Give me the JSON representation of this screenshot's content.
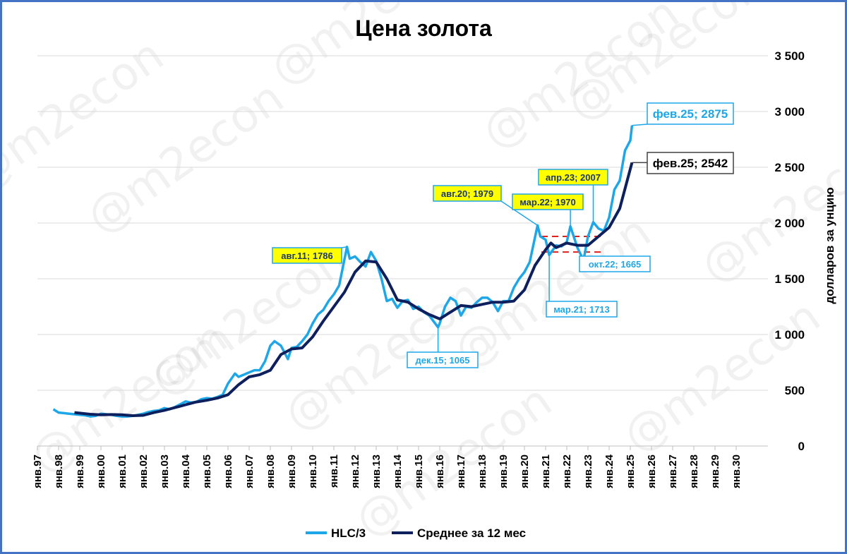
{
  "watermark": "@m2econ",
  "chart_data": {
    "type": "line",
    "title": "Цена золота",
    "ylabel": "долларов за унцию",
    "ylim": [
      0,
      3500
    ],
    "yticks": [
      0,
      500,
      1000,
      1500,
      2000,
      2500,
      3000,
      3500
    ],
    "ytick_labels": [
      "0",
      "500",
      "1 000",
      "1 500",
      "2 000",
      "2 500",
      "3 000",
      "3 500"
    ],
    "xlim": [
      1997.0,
      2031.5
    ],
    "x_tick_labels": [
      "янв.97",
      "янв.98",
      "янв.99",
      "янв.00",
      "янв.01",
      "янв.02",
      "янв.03",
      "янв.04",
      "янв.05",
      "янв.06",
      "янв.07",
      "янв.08",
      "янв.09",
      "янв.10",
      "янв.11",
      "янв.12",
      "янв.13",
      "янв.14",
      "янв.15",
      "янв.16",
      "янв.17",
      "янв.18",
      "янв.19",
      "янв.20",
      "янв.21",
      "янв.22",
      "янв.23",
      "янв.24",
      "янв.25",
      "янв.26",
      "янв.27",
      "янв.28",
      "янв.29",
      "янв.30"
    ],
    "grid": true,
    "legend_position": "bottom",
    "series": [
      {
        "name": "HLC/3",
        "color": "#1ea7e8",
        "x": [
          1997.75,
          1998.0,
          1998.25,
          1998.5,
          1998.75,
          1999.0,
          1999.25,
          1999.5,
          1999.75,
          2000.0,
          2000.25,
          2000.5,
          2000.75,
          2001.0,
          2001.25,
          2001.5,
          2001.75,
          2002.0,
          2002.25,
          2002.5,
          2002.75,
          2003.0,
          2003.25,
          2003.5,
          2003.75,
          2004.0,
          2004.25,
          2004.5,
          2004.75,
          2005.0,
          2005.25,
          2005.5,
          2005.75,
          2006.0,
          2006.33,
          2006.5,
          2006.75,
          2007.0,
          2007.25,
          2007.5,
          2007.75,
          2008.0,
          2008.2,
          2008.5,
          2008.83,
          2009.0,
          2009.25,
          2009.5,
          2009.75,
          2010.0,
          2010.25,
          2010.5,
          2010.75,
          2011.0,
          2011.25,
          2011.62,
          2011.75,
          2012.0,
          2012.25,
          2012.5,
          2012.75,
          2013.0,
          2013.25,
          2013.5,
          2013.75,
          2014.0,
          2014.25,
          2014.5,
          2014.75,
          2015.0,
          2015.25,
          2015.5,
          2015.92,
          2016.0,
          2016.25,
          2016.5,
          2016.75,
          2017.0,
          2017.25,
          2017.5,
          2017.75,
          2018.0,
          2018.25,
          2018.5,
          2018.75,
          2019.0,
          2019.25,
          2019.5,
          2019.75,
          2020.0,
          2020.25,
          2020.62,
          2020.75,
          2021.0,
          2021.17,
          2021.5,
          2021.75,
          2022.0,
          2022.17,
          2022.5,
          2022.79,
          2023.0,
          2023.25,
          2023.5,
          2023.75,
          2024.0,
          2024.25,
          2024.5,
          2024.75,
          2025.0,
          2025.08
        ],
        "values": [
          330,
          300,
          295,
          290,
          285,
          280,
          275,
          265,
          270,
          290,
          285,
          280,
          270,
          265,
          265,
          270,
          280,
          290,
          305,
          315,
          320,
          340,
          330,
          350,
          375,
          400,
          390,
          395,
          420,
          430,
          425,
          440,
          460,
          560,
          650,
          620,
          640,
          660,
          680,
          680,
          760,
          900,
          940,
          900,
          780,
          880,
          890,
          940,
          1000,
          1100,
          1180,
          1220,
          1300,
          1360,
          1440,
          1786,
          1680,
          1700,
          1650,
          1610,
          1740,
          1660,
          1500,
          1300,
          1320,
          1240,
          1300,
          1310,
          1230,
          1250,
          1200,
          1170,
          1065,
          1100,
          1250,
          1330,
          1300,
          1170,
          1250,
          1240,
          1290,
          1330,
          1330,
          1290,
          1210,
          1300,
          1300,
          1420,
          1500,
          1560,
          1650,
          1979,
          1880,
          1850,
          1713,
          1800,
          1790,
          1830,
          1970,
          1780,
          1665,
          1880,
          2007,
          1950,
          1930,
          2050,
          2300,
          2380,
          2650,
          2740,
          2875
        ]
      },
      {
        "name": "Среднее за 12 мес",
        "color": "#0d1f5c",
        "x": [
          1998.75,
          1999.0,
          1999.5,
          2000.0,
          2000.5,
          2001.0,
          2001.5,
          2002.0,
          2002.5,
          2003.0,
          2003.5,
          2004.0,
          2004.5,
          2005.0,
          2005.5,
          2006.0,
          2006.5,
          2007.0,
          2007.5,
          2008.0,
          2008.5,
          2009.0,
          2009.5,
          2010.0,
          2010.5,
          2011.0,
          2011.5,
          2012.0,
          2012.5,
          2013.0,
          2013.5,
          2014.0,
          2014.5,
          2015.0,
          2015.5,
          2016.0,
          2016.5,
          2017.0,
          2017.5,
          2018.0,
          2018.5,
          2019.0,
          2019.5,
          2020.0,
          2020.5,
          2021.0,
          2021.25,
          2021.5,
          2022.0,
          2022.5,
          2023.0,
          2023.5,
          2024.0,
          2024.5,
          2025.08
        ],
        "values": [
          300,
          295,
          285,
          280,
          282,
          280,
          272,
          275,
          300,
          320,
          345,
          370,
          395,
          410,
          430,
          460,
          550,
          620,
          640,
          680,
          820,
          870,
          880,
          980,
          1120,
          1250,
          1380,
          1560,
          1660,
          1650,
          1500,
          1310,
          1290,
          1230,
          1180,
          1140,
          1200,
          1260,
          1250,
          1270,
          1290,
          1290,
          1300,
          1400,
          1620,
          1760,
          1820,
          1780,
          1820,
          1800,
          1800,
          1880,
          1960,
          2130,
          2542
        ]
      }
    ],
    "annotations": [
      {
        "text": "авг.11; 1786",
        "style": "yellow"
      },
      {
        "text": "дек.15; 1065",
        "style": "blue"
      },
      {
        "text": "авг.20; 1979",
        "style": "yellow"
      },
      {
        "text": "мар.22; 1970",
        "style": "yellow"
      },
      {
        "text": "апр.23; 2007",
        "style": "yellow"
      },
      {
        "text": "мар.21; 1713",
        "style": "blue"
      },
      {
        "text": "окт.22; 1665",
        "style": "blue"
      },
      {
        "text": "фев.25; 2875",
        "style": "blue-big"
      },
      {
        "text": "фев.25; 2542",
        "style": "dark-big"
      }
    ],
    "reference_lines": [
      {
        "value": 1880,
        "color": "#e0201a"
      },
      {
        "value": 1740,
        "color": "#e0201a"
      }
    ]
  }
}
